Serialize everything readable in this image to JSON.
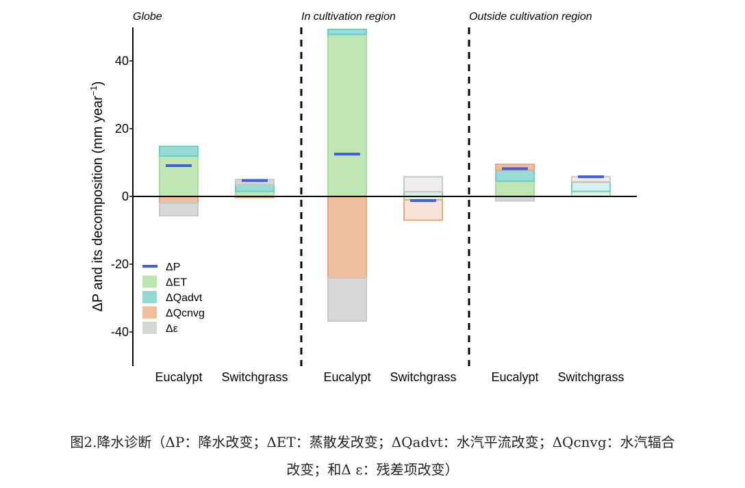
{
  "chart_data": {
    "type": "bar",
    "ylabel": "ΔP and its decomposition (mm year⁻¹)",
    "ylim": [
      -50,
      50
    ],
    "yticks": [
      -40,
      -20,
      0,
      20,
      40
    ],
    "panels": [
      "Globe",
      "In cultivation region",
      "Outside cultivation region"
    ],
    "categories": [
      "Eucalypt",
      "Switchgrass"
    ],
    "stacked": true,
    "series": [
      {
        "name": "ΔP",
        "color": "#3d5fe0",
        "marker": "line",
        "values": [
          [
            9.1,
            4.7
          ],
          [
            12.5,
            -1.2
          ],
          [
            8.2,
            5.8
          ]
        ]
      },
      {
        "name": "ΔET",
        "color": "#a6dc95",
        "marker": "box",
        "values": [
          [
            11.9,
            1.5
          ],
          [
            47.8,
            -1.0
          ],
          [
            4.5,
            1.5
          ]
        ]
      },
      {
        "name": "ΔQadvt",
        "color": "#6ccfc7",
        "marker": "box",
        "values": [
          [
            2.9,
            2.0
          ],
          [
            1.5,
            1.4
          ],
          [
            3.2,
            2.8
          ]
        ]
      },
      {
        "name": "ΔQcnvg",
        "color": "#e9a77b",
        "marker": "box",
        "values": [
          [
            -2.0,
            -0.3
          ],
          [
            -24.0,
            -6.0
          ],
          [
            1.8,
            0.0
          ]
        ]
      },
      {
        "name": "Δε",
        "color": "#c7c7c7",
        "marker": "box",
        "values": [
          [
            -3.7,
            1.5
          ],
          [
            -12.8,
            4.4
          ],
          [
            -1.3,
            1.5
          ]
        ]
      }
    ],
    "legend_position": "lower-left",
    "zero_line": true
  },
  "caption": {
    "line1": "图2.降水诊断（ΔP：降水改变；ΔET：蒸散发改变；ΔQadvt：水汽平流改变；ΔQcnvg：水汽辐合",
    "line2": "改变；和Δ ε：残差项改变）"
  }
}
